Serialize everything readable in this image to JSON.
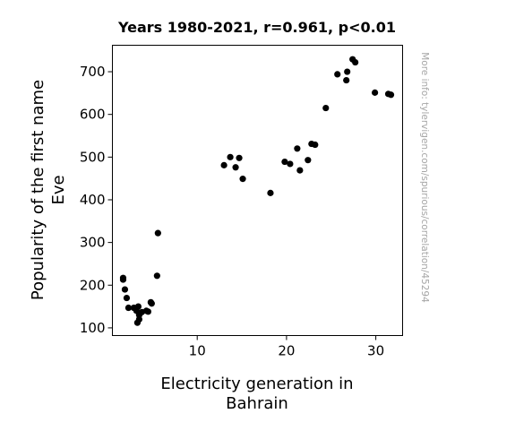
{
  "chart_data": {
    "type": "scatter",
    "title": "Years 1980-2021, r=0.961, p<0.01",
    "xlabel": [
      "Electricity generation in",
      "Bahrain"
    ],
    "ylabel": [
      "Popularity of the first name",
      "Eve"
    ],
    "side_note": "More info: tylervigen.com/spurious/correlation/45294",
    "xlim": [
      0.5,
      33.0
    ],
    "ylim": [
      82,
      762
    ],
    "xticks": [
      10,
      20,
      30
    ],
    "yticks": [
      100,
      200,
      300,
      400,
      500,
      600,
      700
    ],
    "grid": false,
    "point_color": "#000000",
    "points": [
      {
        "x": 1.7,
        "y": 217
      },
      {
        "x": 1.7,
        "y": 213
      },
      {
        "x": 1.9,
        "y": 190
      },
      {
        "x": 2.1,
        "y": 170
      },
      {
        "x": 2.3,
        "y": 147
      },
      {
        "x": 2.9,
        "y": 147
      },
      {
        "x": 3.2,
        "y": 140
      },
      {
        "x": 3.3,
        "y": 112
      },
      {
        "x": 3.4,
        "y": 150
      },
      {
        "x": 3.5,
        "y": 120
      },
      {
        "x": 3.5,
        "y": 130
      },
      {
        "x": 3.8,
        "y": 137
      },
      {
        "x": 4.3,
        "y": 140
      },
      {
        "x": 4.5,
        "y": 138
      },
      {
        "x": 4.8,
        "y": 160
      },
      {
        "x": 4.9,
        "y": 157
      },
      {
        "x": 5.5,
        "y": 222
      },
      {
        "x": 5.6,
        "y": 322
      },
      {
        "x": 13.0,
        "y": 481
      },
      {
        "x": 13.7,
        "y": 500
      },
      {
        "x": 14.3,
        "y": 476
      },
      {
        "x": 14.7,
        "y": 498
      },
      {
        "x": 15.1,
        "y": 449
      },
      {
        "x": 18.2,
        "y": 416
      },
      {
        "x": 19.8,
        "y": 489
      },
      {
        "x": 20.4,
        "y": 484
      },
      {
        "x": 21.2,
        "y": 520
      },
      {
        "x": 21.5,
        "y": 469
      },
      {
        "x": 22.4,
        "y": 493
      },
      {
        "x": 22.8,
        "y": 531
      },
      {
        "x": 23.2,
        "y": 529
      },
      {
        "x": 24.4,
        "y": 615
      },
      {
        "x": 25.7,
        "y": 694
      },
      {
        "x": 26.7,
        "y": 680
      },
      {
        "x": 26.8,
        "y": 700
      },
      {
        "x": 27.4,
        "y": 729
      },
      {
        "x": 27.7,
        "y": 722
      },
      {
        "x": 29.9,
        "y": 651
      },
      {
        "x": 31.4,
        "y": 648
      },
      {
        "x": 31.7,
        "y": 646
      }
    ]
  }
}
